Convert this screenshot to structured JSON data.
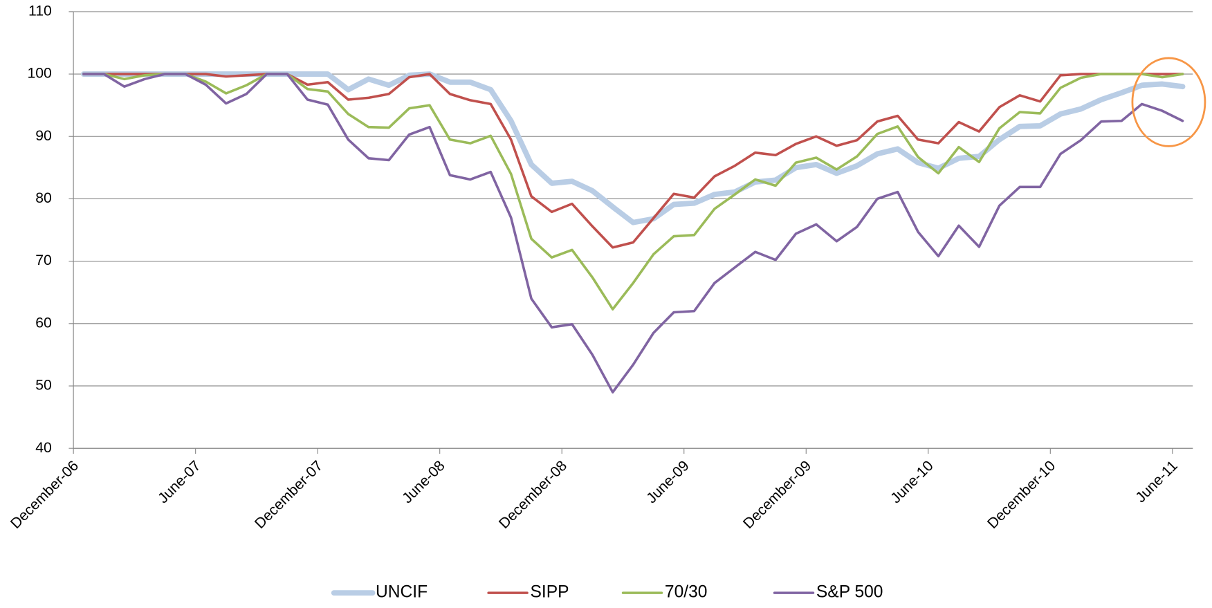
{
  "chart_data": {
    "type": "line",
    "categories": [
      "December-06",
      null,
      null,
      null,
      null,
      null,
      "June-07",
      null,
      null,
      null,
      null,
      null,
      "December-07",
      null,
      null,
      null,
      null,
      null,
      "June-08",
      null,
      null,
      null,
      null,
      null,
      "December-08",
      null,
      null,
      null,
      null,
      null,
      "June-09",
      null,
      null,
      null,
      null,
      null,
      "December-09",
      null,
      null,
      null,
      null,
      null,
      "June-10",
      null,
      null,
      null,
      null,
      null,
      "December-10",
      null,
      null,
      null,
      null,
      null,
      "June-11"
    ],
    "series": [
      {
        "name": "UNCIF",
        "color": "#b9cde5",
        "values": [
          100,
          100,
          100,
          100,
          100,
          100,
          100,
          100,
          100,
          100,
          100,
          100,
          100,
          97.5,
          99.2,
          98.2,
          99.8,
          100,
          98.7,
          98.7,
          97.5,
          92.5,
          85.5,
          82.5,
          82.8,
          81.3,
          78.7,
          76.2,
          76.8,
          79.1,
          79.3,
          80.7,
          81.1,
          82.7,
          83.0,
          85,
          85.5,
          84.1,
          85.3,
          87.2,
          88,
          85.8,
          84.9,
          86.5,
          86.8,
          89.5,
          91.6,
          91.7,
          93.6,
          94.4,
          95.9,
          97,
          98.2,
          98.4,
          98
        ]
      },
      {
        "name": "SIPP",
        "color": "#c0504d",
        "values": [
          100,
          100,
          100,
          100,
          100,
          100,
          100,
          99.6,
          99.8,
          100,
          100,
          98.3,
          98.7,
          95.9,
          96.2,
          96.8,
          99.5,
          100,
          96.8,
          95.8,
          95.2,
          89.5,
          80.4,
          77.9,
          79.2,
          75.6,
          72.2,
          73,
          76.9,
          80.8,
          80.2,
          83.6,
          85.3,
          87.4,
          87,
          88.8,
          90,
          88.5,
          89.4,
          92.4,
          93.3,
          89.5,
          88.9,
          92.3,
          90.8,
          94.7,
          96.6,
          95.6,
          99.8,
          100,
          100,
          100,
          100,
          100,
          100
        ]
      },
      {
        "name": "70/30",
        "color": "#9bbb59",
        "values": [
          100,
          100,
          99.2,
          99.8,
          100,
          100,
          98.8,
          96.9,
          98.2,
          100,
          100,
          97.6,
          97.2,
          93.6,
          91.5,
          91.4,
          94.5,
          95,
          89.5,
          88.9,
          90.1,
          84,
          73.6,
          70.6,
          71.8,
          67.4,
          62.3,
          66.5,
          71.1,
          74,
          74.2,
          78.4,
          80.7,
          83.1,
          82.1,
          85.8,
          86.6,
          84.7,
          86.8,
          90.4,
          91.6,
          86.7,
          84.1,
          88.3,
          85.9,
          91.3,
          93.9,
          93.7,
          97.8,
          99.4,
          100,
          100,
          100,
          99.5,
          100
        ]
      },
      {
        "name": "S&P 500",
        "color": "#8064a2",
        "values": [
          100,
          100,
          98,
          99.2,
          100,
          100,
          98.3,
          95.3,
          96.8,
          100,
          100,
          95.9,
          95.1,
          89.5,
          86.5,
          86.2,
          90.3,
          91.5,
          83.8,
          83.1,
          84.3,
          77,
          64,
          59.4,
          59.9,
          55,
          49,
          53.4,
          58.5,
          61.8,
          62,
          66.5,
          69,
          71.5,
          70.2,
          74.4,
          75.9,
          73.2,
          75.5,
          80,
          81.1,
          74.7,
          70.8,
          75.7,
          72.3,
          78.9,
          81.9,
          81.9,
          87.2,
          89.4,
          92.4,
          92.5,
          95.2,
          94.1,
          92.5
        ]
      }
    ],
    "ylim": [
      40,
      110
    ],
    "yticks": [
      40,
      50,
      60,
      70,
      80,
      90,
      100,
      110
    ],
    "grid": true,
    "legend": "bottom"
  }
}
